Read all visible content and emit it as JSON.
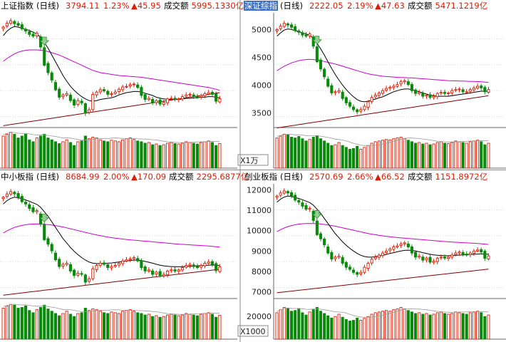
{
  "colors": {
    "up": "#d81e06",
    "down": "#0a8a0a",
    "ma_short": "#000000",
    "ma_mid": "#cc00cc",
    "ma_long": "#800000",
    "grid": "#d9d9d9",
    "title_highlight": "#3a70c8",
    "signal_arrow": "#8fd18f"
  },
  "chart_data": [
    {
      "type": "candlestick",
      "title": "上证指数",
      "period": "(日线)",
      "last": "3794.11",
      "change_pct": "1.23%",
      "change": "▲45.95",
      "turnover_label": "成交额",
      "turnover": "5995.1330亿",
      "y_ticks": [],
      "volume_unit": "",
      "ylim": [
        3300,
        5300
      ],
      "title_highlighted": false,
      "closes": [
        5050,
        5120,
        5160,
        5110,
        5080,
        5020,
        4980,
        4920,
        4890,
        4940,
        4700,
        4380,
        4250,
        4120,
        3950,
        3820,
        3860,
        3880,
        3760,
        3680,
        3760,
        3720,
        3540,
        3600,
        3870,
        3910,
        3950,
        3930,
        3870,
        3880,
        3910,
        3960,
        4000,
        4010,
        4040,
        4050,
        3990,
        3850,
        3780,
        3800,
        3720,
        3760,
        3700,
        3730,
        3790,
        3800,
        3780,
        3790,
        3830,
        3860,
        3870,
        3830,
        3820,
        3850,
        3880,
        3900,
        3870,
        3748,
        3794
      ],
      "ma_short": [
        4900,
        4980,
        5030,
        5060,
        5050,
        5030,
        5010,
        4990,
        4960,
        4930,
        4870,
        4780,
        4680,
        4560,
        4440,
        4320,
        4200,
        4100,
        4010,
        3940,
        3880,
        3830,
        3790,
        3760,
        3750,
        3760,
        3780,
        3790,
        3800,
        3810,
        3830,
        3860,
        3880,
        3900,
        3910,
        3920,
        3920,
        3910,
        3890,
        3870,
        3850,
        3820,
        3800,
        3790,
        3780,
        3780,
        3780,
        3780,
        3790,
        3800,
        3800,
        3810,
        3810,
        3820,
        3820,
        3830,
        3830,
        3820,
        3810
      ],
      "ma_mid": [
        4450,
        4500,
        4540,
        4580,
        4610,
        4630,
        4640,
        4650,
        4650,
        4650,
        4645,
        4635,
        4620,
        4600,
        4580,
        4560,
        4530,
        4500,
        4470,
        4440,
        4410,
        4380,
        4350,
        4320,
        4290,
        4270,
        4250,
        4240,
        4230,
        4220,
        4210,
        4200,
        4195,
        4190,
        4185,
        4180,
        4175,
        4170,
        4160,
        4150,
        4140,
        4130,
        4120,
        4110,
        4100,
        4090,
        4080,
        4070,
        4060,
        4050,
        4040,
        4030,
        4020,
        4010,
        4000,
        3990,
        3975,
        3960,
        3940
      ],
      "ma_long": [
        3320,
        3330,
        3340,
        3350,
        3360,
        3370,
        3380,
        3390,
        3400,
        3410,
        3420,
        3430,
        3440,
        3450,
        3460,
        3470,
        3480,
        3490,
        3500,
        3510,
        3520,
        3530,
        3540,
        3550,
        3560,
        3570,
        3580,
        3590,
        3600,
        3610,
        3620,
        3630,
        3640,
        3650,
        3660,
        3670,
        3680,
        3690,
        3700,
        3710,
        3720,
        3730,
        3740,
        3750,
        3760,
        3770,
        3780,
        3790,
        3800,
        3810,
        3820,
        3830,
        3840,
        3850,
        3860,
        3870,
        3880,
        3890,
        3900
      ],
      "volumes": [
        0.85,
        0.9,
        0.95,
        0.9,
        0.8,
        0.85,
        0.9,
        0.75,
        0.7,
        0.8,
        0.85,
        0.9,
        0.8,
        0.75,
        0.7,
        0.65,
        0.7,
        0.75,
        0.68,
        0.6,
        0.7,
        0.72,
        0.85,
        0.78,
        0.82,
        0.8,
        0.75,
        0.72,
        0.7,
        0.74,
        0.72,
        0.7,
        0.75,
        0.78,
        0.8,
        0.76,
        0.72,
        0.7,
        0.66,
        0.68,
        0.62,
        0.64,
        0.6,
        0.62,
        0.66,
        0.68,
        0.65,
        0.64,
        0.66,
        0.7,
        0.68,
        0.66,
        0.64,
        0.68,
        0.7,
        0.72,
        0.68,
        0.6,
        0.65
      ]
    },
    {
      "type": "candlestick",
      "title": "深证综指",
      "period": "(日线)",
      "last": "2222.05",
      "change_pct": "2.19%",
      "change": "▲47.63",
      "turnover_label": "成交额",
      "turnover": "5471.1219亿",
      "y_ticks": [
        "5000",
        "4500",
        "4000",
        "3500"
      ],
      "volume_unit": "X1万",
      "ylim": [
        3250,
        5300
      ],
      "title_highlighted": true,
      "closes": [
        5000,
        5060,
        5110,
        5080,
        5040,
        4980,
        4950,
        4900,
        4880,
        4920,
        4700,
        4420,
        4290,
        4150,
        3980,
        3860,
        3880,
        3900,
        3760,
        3680,
        3620,
        3560,
        3520,
        3560,
        3620,
        3700,
        3780,
        3820,
        3860,
        3900,
        3940,
        3960,
        3980,
        4010,
        4060,
        4080,
        4010,
        3900,
        3850,
        3870,
        3800,
        3820,
        3780,
        3800,
        3850,
        3870,
        3850,
        3860,
        3900,
        3920,
        3930,
        3880,
        3880,
        3920,
        3950,
        3980,
        3950,
        3880,
        3920
      ],
      "ma_short": [
        4880,
        4940,
        4990,
        5010,
        5000,
        4980,
        4960,
        4940,
        4920,
        4900,
        4840,
        4750,
        4650,
        4540,
        4420,
        4300,
        4190,
        4090,
        4000,
        3920,
        3850,
        3790,
        3740,
        3710,
        3700,
        3710,
        3730,
        3750,
        3770,
        3790,
        3820,
        3850,
        3880,
        3900,
        3920,
        3930,
        3930,
        3920,
        3900,
        3880,
        3860,
        3840,
        3820,
        3810,
        3800,
        3800,
        3800,
        3800,
        3810,
        3820,
        3830,
        3840,
        3850,
        3860,
        3870,
        3880,
        3890,
        3890,
        3890
      ],
      "ma_mid": [
        4260,
        4300,
        4340,
        4370,
        4400,
        4420,
        4440,
        4450,
        4460,
        4465,
        4460,
        4450,
        4440,
        4425,
        4410,
        4395,
        4380,
        4360,
        4340,
        4320,
        4300,
        4280,
        4260,
        4240,
        4220,
        4205,
        4190,
        4180,
        4170,
        4160,
        4155,
        4150,
        4145,
        4140,
        4138,
        4135,
        4132,
        4130,
        4125,
        4120,
        4115,
        4110,
        4105,
        4100,
        4095,
        4090,
        4085,
        4080,
        4078,
        4076,
        4074,
        4072,
        4070,
        4068,
        4066,
        4064,
        4060,
        4055,
        4050
      ],
      "ma_long": [
        3230,
        3240,
        3250,
        3260,
        3270,
        3280,
        3290,
        3300,
        3310,
        3320,
        3330,
        3340,
        3350,
        3360,
        3370,
        3380,
        3390,
        3400,
        3410,
        3420,
        3430,
        3440,
        3450,
        3460,
        3470,
        3480,
        3490,
        3500,
        3510,
        3520,
        3530,
        3540,
        3550,
        3560,
        3570,
        3580,
        3590,
        3600,
        3610,
        3620,
        3630,
        3640,
        3650,
        3660,
        3670,
        3680,
        3690,
        3700,
        3710,
        3720,
        3730,
        3740,
        3750,
        3760,
        3770,
        3780,
        3790,
        3800,
        3810
      ],
      "volumes": [
        0.8,
        0.85,
        0.9,
        0.88,
        0.82,
        0.8,
        0.84,
        0.78,
        0.72,
        0.76,
        0.82,
        0.86,
        0.78,
        0.72,
        0.66,
        0.6,
        0.62,
        0.68,
        0.6,
        0.55,
        0.5,
        0.52,
        0.58,
        0.5,
        0.55,
        0.6,
        0.66,
        0.7,
        0.72,
        0.74,
        0.76,
        0.75,
        0.78,
        0.8,
        0.82,
        0.78,
        0.74,
        0.7,
        0.66,
        0.68,
        0.64,
        0.66,
        0.62,
        0.64,
        0.68,
        0.7,
        0.66,
        0.65,
        0.68,
        0.72,
        0.7,
        0.68,
        0.66,
        0.7,
        0.72,
        0.74,
        0.7,
        0.62,
        0.66
      ]
    },
    {
      "type": "candlestick",
      "title": "中小板指",
      "period": "(日线)",
      "last": "8684.99",
      "change_pct": "2.00%",
      "change": "▲170.09",
      "turnover_label": "成交额",
      "turnover": "2295.6877亿",
      "y_ticks": [],
      "volume_unit": "",
      "ylim": [
        7300,
        12400
      ],
      "title_highlighted": false,
      "closes": [
        11800,
        11950,
        12050,
        11950,
        11800,
        11600,
        11500,
        11300,
        11150,
        11200,
        10600,
        9900,
        9700,
        9400,
        9000,
        8700,
        8800,
        8850,
        8500,
        8300,
        8400,
        8350,
        8000,
        8150,
        8600,
        8750,
        8850,
        8800,
        8650,
        8700,
        8750,
        8850,
        8950,
        9000,
        9050,
        9100,
        8950,
        8650,
        8500,
        8550,
        8350,
        8450,
        8300,
        8350,
        8500,
        8550,
        8500,
        8550,
        8650,
        8750,
        8800,
        8700,
        8650,
        8750,
        8850,
        8900,
        8800,
        8515,
        8685
      ],
      "ma_short": [
        11500,
        11650,
        11750,
        11800,
        11780,
        11730,
        11680,
        11620,
        11550,
        11480,
        11350,
        11150,
        10950,
        10700,
        10450,
        10200,
        9950,
        9750,
        9550,
        9380,
        9230,
        9100,
        8990,
        8900,
        8850,
        8830,
        8830,
        8840,
        8850,
        8860,
        8880,
        8900,
        8930,
        8950,
        8970,
        8990,
        8990,
        8970,
        8930,
        8890,
        8850,
        8800,
        8760,
        8730,
        8710,
        8700,
        8690,
        8690,
        8690,
        8700,
        8710,
        8720,
        8730,
        8740,
        8750,
        8760,
        8770,
        8760,
        8750
      ],
      "ma_mid": [
        10200,
        10300,
        10380,
        10450,
        10500,
        10540,
        10570,
        10590,
        10600,
        10605,
        10600,
        10590,
        10575,
        10555,
        10530,
        10500,
        10470,
        10430,
        10390,
        10350,
        10310,
        10270,
        10230,
        10190,
        10150,
        10110,
        10080,
        10050,
        10020,
        9995,
        9970,
        9950,
        9930,
        9910,
        9895,
        9880,
        9865,
        9850,
        9835,
        9820,
        9805,
        9790,
        9775,
        9760,
        9745,
        9730,
        9715,
        9700,
        9690,
        9680,
        9670,
        9660,
        9650,
        9640,
        9630,
        9620,
        9605,
        9590,
        9570
      ],
      "ma_long": [
        7420,
        7440,
        7460,
        7480,
        7500,
        7520,
        7540,
        7560,
        7580,
        7600,
        7620,
        7640,
        7660,
        7680,
        7700,
        7720,
        7740,
        7760,
        7780,
        7800,
        7820,
        7840,
        7860,
        7880,
        7900,
        7920,
        7940,
        7960,
        7980,
        8000,
        8020,
        8040,
        8060,
        8080,
        8100,
        8120,
        8140,
        8160,
        8180,
        8200,
        8220,
        8240,
        8260,
        8280,
        8300,
        8320,
        8340,
        8360,
        8380,
        8400,
        8420,
        8440,
        8460,
        8480,
        8500,
        8520,
        8540,
        8560,
        8580
      ],
      "volumes": [
        0.82,
        0.88,
        0.92,
        0.9,
        0.82,
        0.84,
        0.88,
        0.76,
        0.7,
        0.78,
        0.84,
        0.9,
        0.8,
        0.74,
        0.68,
        0.62,
        0.68,
        0.74,
        0.66,
        0.6,
        0.68,
        0.7,
        0.82,
        0.76,
        0.8,
        0.78,
        0.74,
        0.7,
        0.68,
        0.72,
        0.7,
        0.68,
        0.74,
        0.76,
        0.78,
        0.74,
        0.7,
        0.68,
        0.64,
        0.66,
        0.6,
        0.62,
        0.58,
        0.6,
        0.64,
        0.66,
        0.64,
        0.62,
        0.64,
        0.68,
        0.66,
        0.64,
        0.62,
        0.66,
        0.68,
        0.7,
        0.66,
        0.58,
        0.63
      ]
    },
    {
      "type": "candlestick",
      "title": "创业板指",
      "period": "(日线)",
      "last": "2570.69",
      "change_pct": "2.66%",
      "change": "▲66.52",
      "turnover_label": "成交额",
      "turnover": "1151.8972亿",
      "y_ticks": [
        "12000",
        "11000",
        "10000",
        "9000",
        "8000",
        "7000"
      ],
      "volume_unit": "X1000",
      "vol_ticks": [
        "20000"
      ],
      "ylim": [
        6700,
        12300
      ],
      "title_highlighted": false,
      "closes": [
        11700,
        11850,
        11950,
        11850,
        11700,
        11500,
        11400,
        11200,
        11050,
        11100,
        10500,
        9800,
        9600,
        9300,
        8900,
        8600,
        8700,
        8750,
        8400,
        8200,
        8100,
        7950,
        7850,
        7950,
        8200,
        8400,
        8600,
        8700,
        8800,
        8900,
        9000,
        9100,
        9200,
        9250,
        9350,
        9400,
        9200,
        8900,
        8700,
        8750,
        8550,
        8650,
        8450,
        8500,
        8650,
        8700,
        8650,
        8700,
        8800,
        8900,
        8950,
        8850,
        8800,
        8900,
        9000,
        9050,
        8950,
        8640,
        8760
      ],
      "ma_short": [
        11400,
        11550,
        11650,
        11700,
        11680,
        11630,
        11580,
        11520,
        11450,
        11380,
        11250,
        11050,
        10850,
        10600,
        10350,
        10100,
        9850,
        9650,
        9450,
        9280,
        9130,
        9000,
        8880,
        8790,
        8730,
        8700,
        8700,
        8720,
        8750,
        8790,
        8830,
        8880,
        8920,
        8960,
        9000,
        9030,
        9040,
        9030,
        9000,
        8960,
        8920,
        8880,
        8840,
        8810,
        8790,
        8780,
        8770,
        8770,
        8780,
        8790,
        8800,
        8810,
        8820,
        8830,
        8840,
        8850,
        8860,
        8850,
        8840
      ],
      "ma_mid": [
        9950,
        10050,
        10130,
        10200,
        10250,
        10290,
        10320,
        10340,
        10350,
        10355,
        10350,
        10340,
        10325,
        10305,
        10280,
        10250,
        10220,
        10180,
        10140,
        10100,
        10060,
        10020,
        9980,
        9940,
        9900,
        9860,
        9830,
        9800,
        9770,
        9745,
        9720,
        9700,
        9680,
        9660,
        9645,
        9630,
        9615,
        9600,
        9585,
        9570,
        9555,
        9540,
        9525,
        9510,
        9495,
        9480,
        9465,
        9450,
        9440,
        9430,
        9420,
        9410,
        9400,
        9390,
        9380,
        9370,
        9355,
        9340,
        9320
      ],
      "ma_long": [
        6950,
        6970,
        6990,
        7010,
        7030,
        7050,
        7070,
        7090,
        7110,
        7130,
        7150,
        7170,
        7190,
        7210,
        7230,
        7250,
        7270,
        7290,
        7310,
        7330,
        7350,
        7370,
        7390,
        7410,
        7430,
        7450,
        7470,
        7490,
        7510,
        7530,
        7550,
        7570,
        7590,
        7610,
        7630,
        7650,
        7670,
        7690,
        7710,
        7730,
        7750,
        7770,
        7790,
        7810,
        7830,
        7850,
        7870,
        7890,
        7910,
        7930,
        7950,
        7970,
        7990,
        8010,
        8030,
        8050,
        8070,
        8090,
        8110
      ],
      "volumes": [
        0.7,
        0.78,
        0.84,
        0.82,
        0.74,
        0.76,
        0.8,
        0.7,
        0.64,
        0.72,
        0.78,
        0.84,
        0.74,
        0.68,
        0.62,
        0.56,
        0.6,
        0.66,
        0.58,
        0.52,
        0.48,
        0.5,
        0.56,
        0.5,
        0.55,
        0.6,
        0.66,
        0.7,
        0.72,
        0.74,
        0.76,
        0.74,
        0.78,
        0.8,
        0.84,
        0.8,
        0.76,
        0.72,
        0.68,
        0.7,
        0.66,
        0.68,
        0.64,
        0.66,
        0.7,
        0.72,
        0.68,
        0.66,
        0.68,
        0.72,
        0.7,
        0.68,
        0.66,
        0.7,
        0.72,
        0.74,
        0.7,
        0.6,
        0.64
      ]
    }
  ]
}
